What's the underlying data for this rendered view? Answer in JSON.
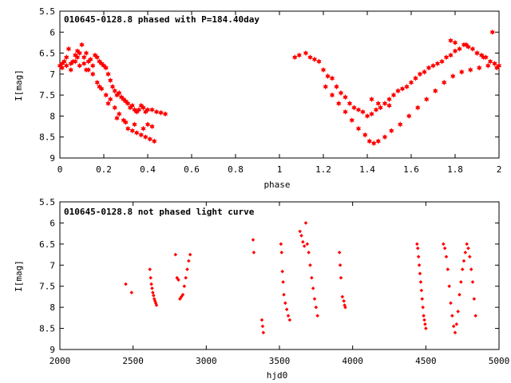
{
  "colors": {
    "points": "#ff0000",
    "axes": "#000000",
    "background": "#ffffff"
  },
  "chart_data": [
    {
      "type": "scatter",
      "title": "010645-0128.8 phased with P=184.40day",
      "xlabel": "phase",
      "ylabel": "I[mag]",
      "xlim": [
        0,
        2
      ],
      "ylim": [
        9,
        5.5
      ],
      "y_reversed": true,
      "grid": false,
      "x_ticks": [
        "0",
        "0.2",
        "0.4",
        "0.6",
        "0.8",
        "1",
        "1.2",
        "1.4",
        "1.6",
        "1.8",
        "2"
      ],
      "y_ticks": [
        "5.5",
        "6",
        "6.5",
        "7",
        "7.5",
        "8",
        "8.5",
        "9"
      ],
      "series": [
        {
          "marker": "star",
          "x": [
            0.0,
            0.01,
            0.02,
            0.03,
            0.04,
            0.05,
            0.06,
            0.07,
            0.08,
            0.09,
            0.1,
            0.11,
            0.12,
            0.13,
            0.14,
            0.15,
            0.16,
            0.17,
            0.18,
            0.19,
            0.2,
            0.21,
            0.22,
            0.23,
            0.24,
            0.25,
            0.26,
            0.27,
            0.28,
            0.29,
            0.3,
            0.31,
            0.32,
            0.33,
            0.34,
            0.35,
            0.36,
            0.37,
            0.38,
            0.39,
            0.4,
            0.42,
            0.44,
            0.46,
            0.48,
            0.01,
            0.03,
            0.05,
            0.07,
            0.09,
            0.11,
            0.13,
            0.15,
            0.17,
            0.19,
            0.21,
            0.23,
            0.25,
            0.27,
            0.29,
            0.31,
            0.33,
            0.35,
            0.37,
            0.39,
            0.41,
            0.43,
            0.08,
            0.12,
            0.18,
            0.22,
            0.26,
            0.3,
            0.34,
            0.38,
            0.4,
            0.42,
            1.07,
            1.09,
            1.12,
            1.14,
            1.16,
            1.18,
            1.2,
            1.22,
            1.24,
            1.26,
            1.28,
            1.3,
            1.32,
            1.34,
            1.36,
            1.38,
            1.4,
            1.42,
            1.44,
            1.46,
            1.48,
            1.5,
            1.52,
            1.54,
            1.56,
            1.58,
            1.6,
            1.62,
            1.64,
            1.66,
            1.68,
            1.7,
            1.72,
            1.74,
            1.76,
            1.78,
            1.8,
            1.82,
            1.84,
            1.86,
            1.88,
            1.9,
            1.92,
            1.94,
            1.96,
            1.98,
            2.0,
            1.21,
            1.24,
            1.27,
            1.3,
            1.33,
            1.36,
            1.39,
            1.41,
            1.43,
            1.45,
            1.48,
            1.51,
            1.55,
            1.59,
            1.63,
            1.67,
            1.71,
            1.75,
            1.79,
            1.83,
            1.87,
            1.91,
            1.95,
            1.99,
            1.78,
            1.8,
            1.85,
            1.9,
            1.93,
            1.97,
            1.98,
            1.42,
            1.45,
            1.5
          ],
          "y": [
            6.8,
            6.75,
            6.7,
            6.6,
            6.4,
            6.75,
            6.7,
            6.55,
            6.45,
            6.5,
            6.3,
            6.6,
            6.5,
            6.7,
            6.65,
            6.8,
            6.55,
            6.6,
            6.7,
            6.75,
            6.8,
            6.85,
            7.0,
            7.15,
            7.3,
            7.4,
            7.5,
            7.45,
            7.55,
            7.6,
            7.65,
            7.7,
            7.8,
            7.75,
            7.85,
            7.9,
            7.85,
            7.75,
            7.8,
            7.9,
            7.85,
            7.85,
            7.9,
            7.92,
            7.95,
            6.85,
            6.8,
            6.9,
            6.7,
            6.8,
            6.75,
            6.9,
            7.0,
            7.2,
            7.35,
            7.5,
            7.6,
            7.8,
            7.95,
            8.1,
            8.3,
            8.35,
            8.4,
            8.45,
            8.5,
            8.55,
            8.6,
            6.6,
            6.9,
            7.3,
            7.7,
            8.05,
            8.15,
            8.2,
            8.3,
            8.2,
            8.25,
            6.6,
            6.55,
            6.5,
            6.6,
            6.65,
            6.7,
            6.9,
            7.05,
            7.1,
            7.3,
            7.45,
            7.55,
            7.7,
            7.8,
            7.85,
            7.9,
            8.0,
            7.95,
            7.85,
            7.8,
            7.7,
            7.6,
            7.5,
            7.4,
            7.35,
            7.3,
            7.2,
            7.1,
            7.0,
            6.95,
            6.85,
            6.8,
            6.75,
            6.7,
            6.6,
            6.55,
            6.45,
            6.4,
            6.3,
            6.35,
            6.4,
            6.5,
            6.55,
            6.6,
            6.7,
            6.75,
            6.8,
            7.3,
            7.5,
            7.7,
            7.9,
            8.1,
            8.3,
            8.45,
            8.6,
            8.65,
            8.6,
            8.5,
            8.35,
            8.2,
            8.0,
            7.8,
            7.6,
            7.4,
            7.2,
            7.05,
            6.95,
            6.9,
            6.85,
            6.8,
            6.85,
            6.2,
            6.25,
            6.3,
            6.5,
            6.6,
            6.0,
            6.75,
            7.6,
            7.7,
            7.75
          ]
        }
      ]
    },
    {
      "type": "scatter",
      "title": "010645-0128.8 not phased light curve",
      "xlabel": "hjd0",
      "ylabel": "I[mag]",
      "xlim": [
        2000,
        5000
      ],
      "ylim": [
        9,
        5.5
      ],
      "y_reversed": true,
      "grid": false,
      "x_ticks": [
        "2000",
        "2500",
        "3000",
        "3500",
        "4000",
        "4500",
        "5000"
      ],
      "y_ticks": [
        "5.5",
        "6",
        "6.5",
        "7",
        "7.5",
        "8",
        "8.5",
        "9"
      ],
      "series": [
        {
          "marker": "diamond",
          "x": [
            2450,
            2490,
            2615,
            2620,
            2625,
            2630,
            2635,
            2640,
            2645,
            2650,
            2655,
            2660,
            2790,
            2800,
            2810,
            2820,
            2830,
            2840,
            2850,
            2860,
            2870,
            2880,
            2890,
            3320,
            3325,
            3380,
            3385,
            3390,
            3510,
            3515,
            3520,
            3525,
            3530,
            3540,
            3550,
            3560,
            3570,
            3640,
            3650,
            3660,
            3670,
            3680,
            3690,
            3700,
            3710,
            3720,
            3730,
            3740,
            3750,
            3760,
            3910,
            3915,
            3920,
            3930,
            3940,
            3945,
            3950,
            4440,
            4445,
            4450,
            4455,
            4460,
            4465,
            4470,
            4475,
            4480,
            4485,
            4490,
            4495,
            4500,
            4620,
            4630,
            4640,
            4650,
            4660,
            4670,
            4680,
            4690,
            4700,
            4710,
            4720,
            4730,
            4740,
            4750,
            4760,
            4770,
            4780,
            4790,
            4800,
            4810,
            4820,
            4830,
            4840
          ],
          "y": [
            7.45,
            7.65,
            7.1,
            7.3,
            7.45,
            7.55,
            7.65,
            7.72,
            7.8,
            7.85,
            7.9,
            7.95,
            6.75,
            7.3,
            7.35,
            7.8,
            7.75,
            7.7,
            7.5,
            7.3,
            7.1,
            6.9,
            6.75,
            6.4,
            6.7,
            8.3,
            8.45,
            8.6,
            6.5,
            6.7,
            7.15,
            7.4,
            7.7,
            7.9,
            8.05,
            8.2,
            8.3,
            6.2,
            6.3,
            6.45,
            6.55,
            6.0,
            6.5,
            6.7,
            7.0,
            7.3,
            7.55,
            7.8,
            8.0,
            8.2,
            6.7,
            7.0,
            7.3,
            7.75,
            7.85,
            7.95,
            8.0,
            6.5,
            6.6,
            6.8,
            7.0,
            7.2,
            7.4,
            7.6,
            7.8,
            8.0,
            8.2,
            8.3,
            8.4,
            8.5,
            6.5,
            6.6,
            6.8,
            7.1,
            7.5,
            7.9,
            8.2,
            8.45,
            8.6,
            8.4,
            8.1,
            7.7,
            7.4,
            7.1,
            6.9,
            6.7,
            6.5,
            6.6,
            6.8,
            7.1,
            7.4,
            7.8,
            8.2
          ]
        }
      ]
    }
  ]
}
